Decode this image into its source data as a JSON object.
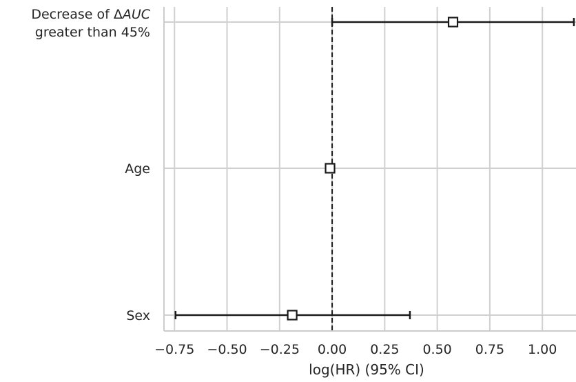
{
  "chart_data": {
    "type": "forest",
    "xlabel": "log(HR) (95% CI)",
    "xlim": [
      -0.8,
      1.16
    ],
    "xticks": [
      -0.75,
      -0.5,
      -0.25,
      0.0,
      0.25,
      0.5,
      0.75,
      1.0
    ],
    "xtick_labels": [
      "−0.75",
      "−0.50",
      "−0.25",
      "0.00",
      "0.25",
      "0.50",
      "0.75",
      "1.00"
    ],
    "reference_line": 0.0,
    "grid": true,
    "rows": [
      {
        "label_parts": [
          {
            "text": "Decrease of ",
            "italic": false
          },
          {
            "text": "Δ",
            "italic": false
          },
          {
            "text": "AUC",
            "italic": true
          }
        ],
        "label_line2": "greater than 45%",
        "estimate": 0.575,
        "lower": 0.0,
        "upper": 1.15
      },
      {
        "label": "Age",
        "estimate": -0.01,
        "lower": -0.015,
        "upper": -0.005
      },
      {
        "label": "Sex",
        "estimate": -0.19,
        "lower": -0.745,
        "upper": 0.37
      }
    ],
    "colors": {
      "grid": "#d0d0d0",
      "axis": "#cccccc",
      "marker_edge": "#1a1a1a",
      "marker_fill": "#ffffff",
      "errorbar": "#1a1a1a",
      "reference": "#1a1a1a"
    }
  }
}
